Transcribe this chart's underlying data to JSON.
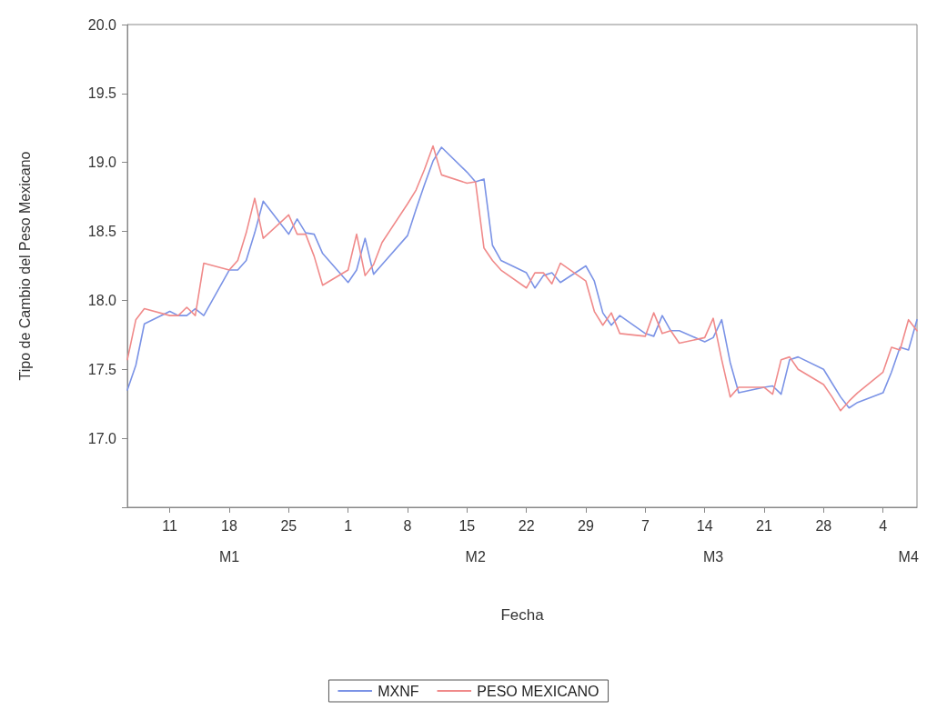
{
  "chart_data": {
    "type": "line",
    "xlabel": "Fecha",
    "ylabel": "Tipo de Cambio del Peso Mexicano",
    "x": [
      "--01-06",
      "--01-07",
      "--01-08",
      "--01-11",
      "--01-12",
      "--01-13",
      "--01-14",
      "--01-15",
      "--01-18",
      "--01-19",
      "--01-20",
      "--01-21",
      "--01-22",
      "--01-25",
      "--01-26",
      "--01-27",
      "--01-28",
      "--01-29",
      "--02-01",
      "--02-02",
      "--02-03",
      "--02-04",
      "--02-05",
      "--02-08",
      "--02-09",
      "--02-10",
      "--02-11",
      "--02-12",
      "--02-15",
      "--02-16",
      "--02-17",
      "--02-18",
      "--02-19",
      "--02-22",
      "--02-23",
      "--02-24",
      "--02-25",
      "--02-26",
      "--02-29",
      "--03-01",
      "--03-02",
      "--03-03",
      "--03-04",
      "--03-07",
      "--03-08",
      "--03-09",
      "--03-10",
      "--03-11",
      "--03-14",
      "--03-15",
      "--03-16",
      "--03-17",
      "--03-18",
      "--03-21",
      "--03-22",
      "--03-23",
      "--03-24",
      "--03-25",
      "--03-28",
      "--03-29",
      "--03-30",
      "--03-31",
      "--04-01",
      "--04-04",
      "--04-05",
      "--04-06",
      "--04-07",
      "--04-08"
    ],
    "series": [
      {
        "name": "MXNF",
        "color": "#7b93e6",
        "values": [
          17.35,
          17.53,
          17.83,
          17.92,
          17.89,
          17.89,
          17.94,
          17.89,
          18.22,
          18.22,
          18.29,
          18.49,
          18.72,
          18.48,
          18.59,
          18.49,
          18.48,
          18.34,
          18.13,
          18.22,
          18.45,
          18.19,
          18.26,
          18.47,
          18.66,
          18.84,
          19.01,
          19.11,
          18.93,
          18.86,
          18.88,
          18.4,
          18.29,
          18.2,
          18.09,
          18.18,
          18.2,
          18.13,
          18.25,
          18.14,
          17.91,
          17.82,
          17.89,
          17.76,
          17.74,
          17.89,
          17.78,
          17.78,
          17.7,
          17.73,
          17.86,
          17.55,
          17.33,
          17.37,
          17.38,
          17.32,
          17.57,
          17.59,
          17.5,
          17.4,
          17.3,
          17.22,
          17.26,
          17.33,
          17.48,
          17.66,
          17.64,
          17.86
        ]
      },
      {
        "name": "PESO MEXICANO",
        "color": "#f08a8a",
        "values": [
          17.57,
          17.86,
          17.94,
          17.89,
          17.89,
          17.95,
          17.89,
          18.27,
          18.22,
          18.29,
          18.49,
          18.74,
          18.45,
          18.62,
          18.48,
          18.48,
          18.32,
          18.11,
          18.22,
          18.48,
          18.18,
          18.26,
          18.42,
          18.7,
          18.8,
          18.95,
          19.12,
          18.91,
          18.85,
          18.86,
          18.38,
          18.29,
          18.22,
          18.09,
          18.2,
          18.2,
          18.12,
          18.27,
          18.14,
          17.92,
          17.82,
          17.91,
          17.76,
          17.74,
          17.91,
          17.76,
          17.78,
          17.69,
          17.73,
          17.87,
          17.57,
          17.3,
          17.37,
          17.37,
          17.32,
          17.57,
          17.59,
          17.5,
          17.39,
          17.3,
          17.2,
          17.27,
          17.33,
          17.48,
          17.66,
          17.64,
          17.86,
          17.78
        ]
      }
    ],
    "xlim": [
      "--01-06",
      "--04-08"
    ],
    "xticks": [
      {
        "value": "--01-11",
        "label": "11"
      },
      {
        "value": "--01-18",
        "label": "18"
      },
      {
        "value": "--01-25",
        "label": "25"
      },
      {
        "value": "--02-01",
        "label": "1"
      },
      {
        "value": "--02-08",
        "label": "8"
      },
      {
        "value": "--02-15",
        "label": "15"
      },
      {
        "value": "--02-22",
        "label": "22"
      },
      {
        "value": "--02-29",
        "label": "29"
      },
      {
        "value": "--03-07",
        "label": "7"
      },
      {
        "value": "--03-14",
        "label": "14"
      },
      {
        "value": "--03-21",
        "label": "21"
      },
      {
        "value": "--03-28",
        "label": "28"
      },
      {
        "value": "--04-04",
        "label": "4"
      }
    ],
    "x2lim": [
      "--01-06",
      "--04-08"
    ],
    "x2ticks": [
      {
        "value": "--01-18",
        "label": "M1"
      },
      {
        "value": "--02-16",
        "label": "M2"
      },
      {
        "value": "--03-15",
        "label": "M3"
      },
      {
        "value": "--04-07",
        "label": "M4"
      }
    ],
    "ylim": [
      16.5,
      20.0
    ],
    "yticks": [
      {
        "value": 16.5,
        "label": null
      },
      {
        "value": 17,
        "label": "17.0"
      },
      {
        "value": 17.5,
        "label": "17.5"
      },
      {
        "value": 18,
        "label": "18.0"
      },
      {
        "value": 18.5,
        "label": "18.5"
      },
      {
        "value": 19,
        "label": "19.0"
      },
      {
        "value": 19.5,
        "label": "19.5"
      },
      {
        "value": 20,
        "label": "20.0"
      }
    ],
    "grid": false,
    "legend": "bottom",
    "marker": "none",
    "line_style": "solid"
  }
}
